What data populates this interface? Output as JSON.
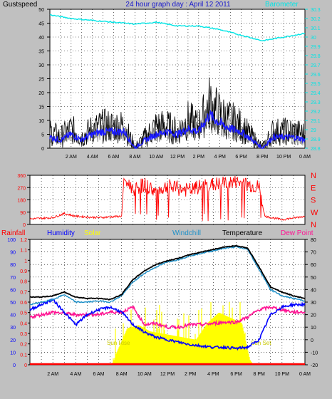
{
  "colors": {
    "background": "#c0c0c0",
    "plot_bg": "#ffffff",
    "grid": "#000000",
    "gust": "#000000",
    "wind": "#1a1aff",
    "wind_min": "#808080",
    "barometer": "#00e5e5",
    "direction": "#ff0000",
    "rainfall": "#ff0000",
    "humidity": "#0000ff",
    "solar": "#ffff00",
    "windchill": "#1e90c8",
    "temperature": "#000000",
    "dewpoint": "#ff1493"
  },
  "chart_data": [
    {
      "type": "line",
      "title": "24 hour graph day : April 12 2011",
      "left_label": "Gustspeed",
      "right_label": "Barometer",
      "x_ticks": [
        "2 AM",
        "4 AM",
        "6 AM",
        "8 AM",
        "10 AM",
        "12 PM",
        "2 PM",
        "4 PM",
        "6 PM",
        "8 PM",
        "10 PM",
        "0 AM"
      ],
      "x_range_hours": [
        0,
        24
      ],
      "y_left_ticks": [
        "0",
        "5",
        "10",
        "15",
        "20",
        "25",
        "30",
        "35",
        "40",
        "45",
        "50"
      ],
      "ylim_left": [
        0,
        50
      ],
      "y_right_ticks": [
        "28.8",
        "28.9",
        "29",
        "29.1",
        "29.2",
        "29.3",
        "29.4",
        "29.5",
        "29.6",
        "29.7",
        "29.8",
        "29.9",
        "30",
        "30.1",
        "30.2",
        "30.3"
      ],
      "ylim_right": [
        28.8,
        30.3
      ],
      "grid": true,
      "series": [
        {
          "name": "Gustspeed",
          "axis": "left",
          "x": [
            0,
            1,
            2,
            3,
            4,
            5,
            6,
            7,
            8,
            9,
            10,
            11,
            12,
            13,
            14,
            15,
            16,
            17,
            18,
            19,
            20,
            21,
            22,
            23,
            24
          ],
          "values": [
            6,
            4,
            7,
            4,
            7,
            8,
            8,
            8,
            0,
            4,
            8,
            8,
            6,
            10,
            8,
            16,
            12,
            10,
            8,
            4,
            0,
            6,
            6,
            6,
            5
          ]
        },
        {
          "name": "Wind speed",
          "axis": "left",
          "x": [
            0,
            1,
            2,
            3,
            4,
            5,
            6,
            7,
            8,
            9,
            10,
            11,
            12,
            13,
            14,
            15,
            16,
            17,
            18,
            19,
            20,
            21,
            22,
            23,
            24
          ],
          "values": [
            4,
            3,
            5,
            3,
            5,
            6,
            6,
            6,
            0,
            3,
            5,
            6,
            5,
            7,
            6,
            12,
            9,
            7,
            6,
            3,
            0,
            4,
            4,
            4,
            3
          ]
        },
        {
          "name": "Barometer",
          "axis": "right",
          "x": [
            0,
            2,
            4,
            6,
            8,
            10,
            12,
            14,
            16,
            18,
            20,
            22,
            24
          ],
          "values": [
            30.24,
            30.2,
            30.18,
            30.16,
            30.14,
            30.16,
            30.12,
            30.12,
            30.08,
            30.02,
            29.96,
            30.0,
            30.04
          ]
        }
      ]
    },
    {
      "type": "line",
      "title": "",
      "right_labels": [
        "N",
        "W",
        "S",
        "E",
        "N"
      ],
      "y_ticks": [
        "0",
        "90",
        "180",
        "270",
        "360"
      ],
      "ylim": [
        0,
        360
      ],
      "x_range_hours": [
        0,
        24
      ],
      "grid": true,
      "series": [
        {
          "name": "Wind direction",
          "x": [
            0,
            2,
            3,
            4,
            6,
            8,
            8.2,
            9,
            10,
            11,
            12,
            13,
            14,
            15,
            16,
            17,
            18,
            19,
            20,
            20.5,
            22,
            24
          ],
          "values": [
            40,
            50,
            80,
            60,
            50,
            60,
            330,
            260,
            290,
            240,
            280,
            260,
            250,
            280,
            290,
            300,
            310,
            290,
            270,
            60,
            35,
            60
          ]
        }
      ]
    },
    {
      "type": "line",
      "legend": [
        "Rainfall",
        "Humidity",
        "Solar",
        "Windchill",
        "Temperature",
        "Dew Point"
      ],
      "legend_placement": "top",
      "y_left_ticks": [
        "0",
        "10",
        "20",
        "30",
        "40",
        "50",
        "60",
        "70",
        "80",
        "90",
        "100"
      ],
      "ylim_humidity": [
        0,
        100
      ],
      "y_rain_ticks": [
        "0",
        "0.1",
        "0.2",
        "0.3",
        "0.4",
        "0.5",
        "0.6",
        "0.7",
        "0.8",
        "0.9",
        "1",
        "1.1",
        "1.2"
      ],
      "ylim_rain": [
        0,
        1.2
      ],
      "y_right_ticks": [
        "-20",
        "-10",
        "0",
        "10",
        "20",
        "30",
        "40",
        "50",
        "60",
        "70",
        "80"
      ],
      "ylim_temp": [
        -20,
        80
      ],
      "x_ticks": [
        "2 AM",
        "4 AM",
        "6 AM",
        "8 AM",
        "10 AM",
        "12 PM",
        "2 PM",
        "4 PM",
        "6 PM",
        "8 PM",
        "10 PM",
        "0 AM"
      ],
      "x_range_hours": [
        0,
        24
      ],
      "grid": true,
      "annotations": [
        "Sun Rise",
        "Sun Set"
      ],
      "series": [
        {
          "name": "Temperature",
          "x": [
            0,
            1,
            2,
            3,
            4,
            5,
            6,
            7,
            8,
            9,
            10,
            11,
            12,
            13,
            14,
            15,
            16,
            17,
            18,
            19,
            20,
            21,
            22,
            23,
            24
          ],
          "values": [
            34,
            34,
            35,
            38,
            34,
            33,
            33,
            32,
            36,
            48,
            55,
            60,
            63,
            65,
            68,
            70,
            72,
            74,
            75,
            73,
            58,
            42,
            38,
            35,
            33
          ]
        },
        {
          "name": "Windchill",
          "x": [
            0,
            1,
            2,
            3,
            4,
            5,
            6,
            7,
            8,
            9,
            10,
            11,
            12,
            13,
            14,
            15,
            16,
            17,
            18,
            19,
            20,
            21,
            22,
            23,
            24
          ],
          "values": [
            28,
            30,
            32,
            36,
            30,
            30,
            31,
            30,
            35,
            46,
            53,
            58,
            62,
            64,
            67,
            69,
            71,
            73,
            74,
            72,
            56,
            40,
            35,
            33,
            31
          ]
        },
        {
          "name": "Humidity",
          "x": [
            0,
            1,
            2,
            3,
            4,
            5,
            6,
            7,
            8,
            9,
            10,
            11,
            12,
            13,
            14,
            15,
            16,
            17,
            18,
            19,
            20,
            21,
            22,
            23,
            24
          ],
          "values": [
            44,
            48,
            52,
            42,
            32,
            40,
            44,
            46,
            42,
            32,
            26,
            22,
            20,
            18,
            16,
            15,
            14,
            14,
            13,
            14,
            20,
            40,
            46,
            48,
            48
          ]
        },
        {
          "name": "Dew Point",
          "x": [
            0,
            1,
            2,
            3,
            4,
            5,
            6,
            7,
            8,
            9,
            10,
            11,
            12,
            13,
            14,
            15,
            16,
            17,
            18,
            19,
            20,
            21,
            22,
            23,
            24
          ],
          "values": [
            18,
            20,
            22,
            21,
            20,
            20,
            20,
            22,
            22,
            26,
            12,
            13,
            10,
            10,
            12,
            12,
            13,
            14,
            14,
            18,
            24,
            26,
            24,
            22,
            22
          ]
        },
        {
          "name": "Solar",
          "x": [
            0,
            7.2,
            7.5,
            8.5,
            9.5,
            10.5,
            11.5,
            12.5,
            13.5,
            14.5,
            15.5,
            16.5,
            17.5,
            18.5,
            19.2,
            19.5,
            24
          ],
          "values": [
            0,
            0,
            0.1,
            0.35,
            0.38,
            0.32,
            0.3,
            0.28,
            0.26,
            0.24,
            0.4,
            0.5,
            0.45,
            0.4,
            0.05,
            0,
            0
          ]
        },
        {
          "name": "Rainfall",
          "x": [
            0,
            24
          ],
          "values": [
            0,
            0
          ]
        }
      ]
    }
  ]
}
